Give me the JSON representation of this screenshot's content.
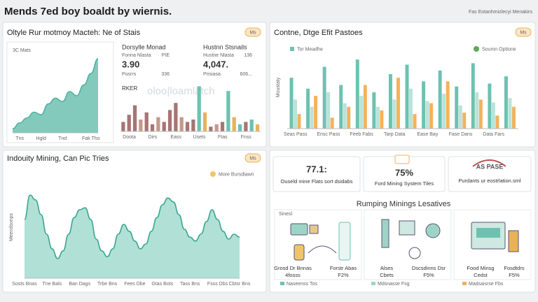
{
  "header": {
    "title": "Mends 7ed boy boaldt by wiernis.",
    "right": "Fas Eotanhmizlecyi Menakirs"
  },
  "panel1": {
    "title": "Oltyle Rur motmoy Macteh: Ne of Stais",
    "badge": "Ms",
    "area": {
      "type": "area",
      "label": "3C Mats",
      "color": "#4fb3a0",
      "categories": [
        null,
        "Tns",
        null,
        null,
        "Hgld",
        null,
        null,
        "Tnd",
        null,
        null,
        null,
        "Fak Tho",
        null
      ],
      "values": [
        5,
        12,
        18,
        25,
        22,
        35,
        42,
        38,
        50,
        45,
        58,
        72,
        90
      ],
      "ylim": [
        0,
        100
      ]
    },
    "stats": [
      {
        "heading": "Dorsylle Monad",
        "row": "Fonna Nlasta",
        "row_value": "PIE",
        "big": "3.90",
        "sub": "Pusrrs",
        "sub_value": "336"
      },
      {
        "heading": "Hustnn Stsnails",
        "row": "Hustne Nlasta",
        "row_value": "136",
        "big": "4,047.",
        "sub": "Prisiasa",
        "sub_value": "606..."
      }
    ],
    "marker": "RKER",
    "watermark": "oloo|loamlatch",
    "bars": {
      "type": "bar",
      "ylim": [
        0,
        100
      ],
      "categories": [
        null,
        "Doota",
        null,
        null,
        null,
        "Dirs",
        null,
        null,
        null,
        "Eass",
        null,
        null,
        null,
        "Usets",
        null,
        null,
        null,
        "Ftas",
        null,
        null,
        null,
        "Fnss",
        null,
        null
      ],
      "values": [
        20,
        35,
        55,
        25,
        40,
        15,
        30,
        20,
        45,
        60,
        30,
        20,
        25,
        95,
        40,
        10,
        15,
        20,
        85,
        30,
        15,
        20,
        25,
        15
      ],
      "colors": [
        "#a87474",
        "#a87474",
        "#a87474",
        "#c49a8a",
        "#a87474",
        "#a87474",
        "#c49a8a",
        "#a87474",
        "#a87474",
        "#a87474",
        "#c49a8a",
        "#a87474",
        "#a87474",
        "#6cc2b0",
        "#e9b25a",
        "#a87474",
        "#c49a8a",
        "#a87474",
        "#6cc2b0",
        "#e9b25a",
        "#6cc2b0",
        "#a87474",
        "#6cc2b0",
        "#e9b25a"
      ]
    }
  },
  "panel2": {
    "title": "Contne, Dtge Efit Pastoes",
    "badge": "Ms",
    "ylabel": "Moustaty",
    "legend_left": "Tor Meadhe",
    "legend_right": "Soumn Optione",
    "chart": {
      "type": "bar",
      "ylim": [
        0,
        100
      ],
      "categories": [
        "Seas Pass",
        null,
        "Ensc Pass",
        null,
        "Feeb Fabs",
        null,
        "Tarp Data",
        null,
        "Ease Bay",
        null,
        "Fase Dans",
        null,
        "Data Fars",
        null
      ],
      "series": [
        {
          "color": "#6cc2b0",
          "values": [
            70,
            55,
            85,
            60,
            95,
            50,
            75,
            88,
            65,
            80,
            58,
            90,
            62,
            72
          ]
        },
        {
          "color": "#b9e3da",
          "values": [
            40,
            30,
            50,
            35,
            45,
            30,
            40,
            55,
            38,
            48,
            32,
            50,
            36,
            42
          ]
        },
        {
          "color": "#f2b35a",
          "values": [
            20,
            45,
            15,
            30,
            60,
            25,
            70,
            20,
            35,
            65,
            22,
            40,
            18,
            30
          ]
        }
      ]
    }
  },
  "panel3": {
    "title": "Indouity Mining, Can Pic Tries",
    "badge": "Ms",
    "ylabel": "Meendsonps",
    "legend": "More Bursdiawn",
    "chart": {
      "type": "area",
      "color": "#3aa891",
      "fill": "#8fd3c4",
      "ylim": [
        0,
        100
      ],
      "categories": [
        "Sosts Bnas",
        null,
        null,
        null,
        null,
        "Tne Bals",
        null,
        null,
        null,
        null,
        "Ban Dags",
        null,
        null,
        null,
        null,
        "Trbe Bns",
        null,
        null,
        null,
        null,
        "Fees Dbe",
        null,
        null,
        null,
        null,
        "Gtas Bots",
        null,
        null,
        null,
        null,
        "Tass Bns",
        null,
        null,
        null,
        null,
        "Fsss Dbs",
        null,
        null,
        null,
        "Cbtsr Bns"
      ],
      "values": [
        60,
        85,
        80,
        65,
        45,
        30,
        20,
        28,
        45,
        62,
        70,
        72,
        60,
        40,
        28,
        22,
        30,
        45,
        55,
        48,
        38,
        30,
        35,
        48,
        62,
        75,
        82,
        78,
        65,
        50,
        42,
        38,
        45,
        58,
        70,
        60,
        48,
        40,
        45,
        42
      ]
    }
  },
  "panel4": {
    "cards": [
      {
        "value": "77.1:",
        "label": "Ouseld mine Flats sort dsidabs"
      },
      {
        "value": "75%",
        "label": "Ford Mining System Tiles"
      },
      {
        "value": "AS PASE",
        "label": "Purdants ur eostrlation.sml"
      }
    ],
    "section": "Rumping Minings Lesatives",
    "tag": "Sinesl",
    "items": [
      {
        "name": "Grosd Dr Bnnas",
        "value": "4fosss"
      },
      {
        "name": "Forstr Abas",
        "value": "F2%"
      },
      {
        "name": "Alses",
        "value": "Cbets"
      },
      {
        "name": "Dscsdinns Dsr",
        "value": "F5%"
      },
      {
        "name": "Food Minsg",
        "value": "Cedst"
      },
      {
        "name": "Fosdtdrs",
        "value": "F5%"
      }
    ],
    "legend": [
      "Naseenss Tos",
      "Mdsnasse Fsg",
      "Madsaisrse Fbs"
    ]
  }
}
